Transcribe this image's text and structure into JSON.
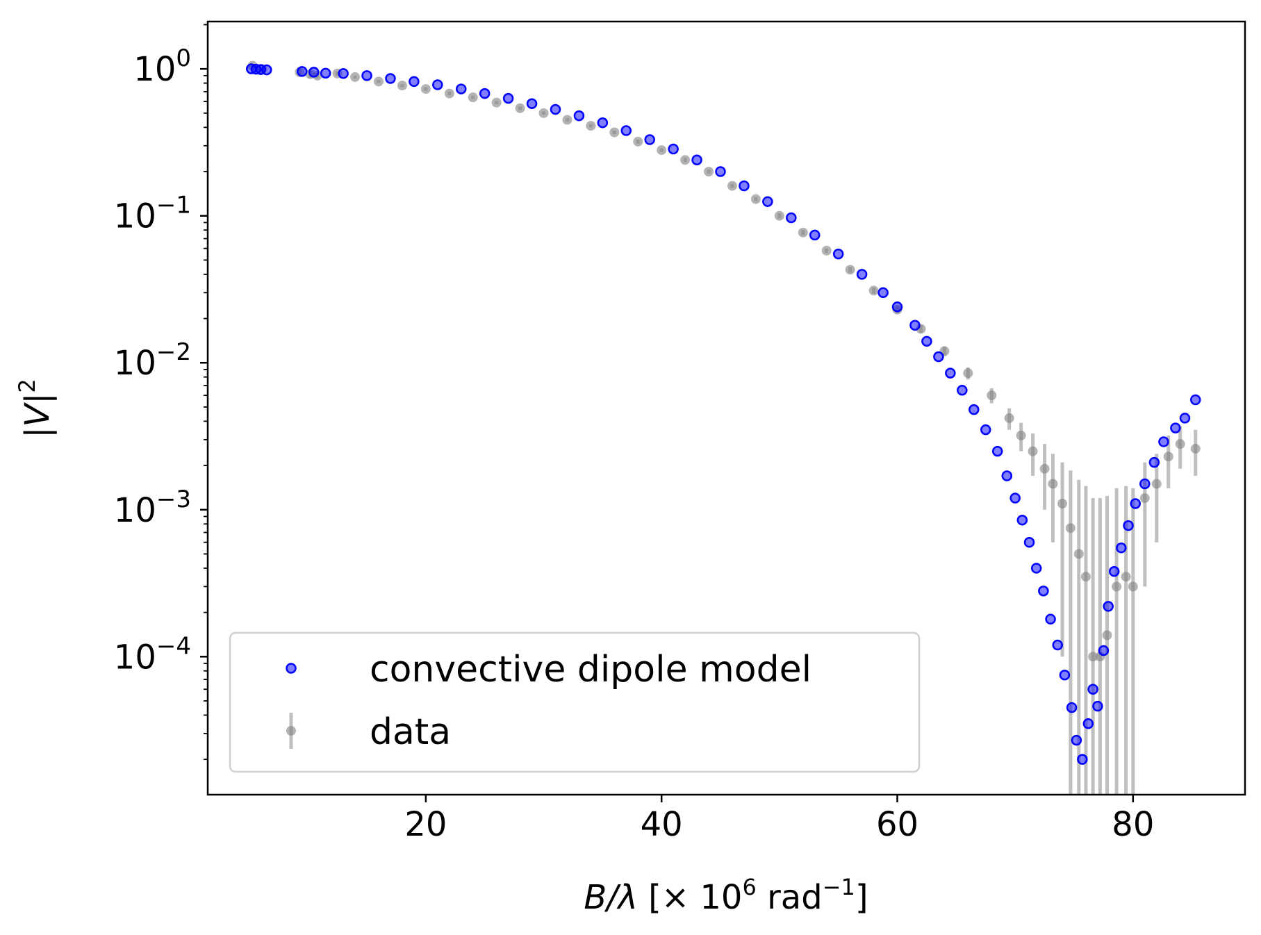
{
  "chart_data": {
    "type": "scatter",
    "title": "",
    "xlabel": {
      "text": "B/λ [× 10⁶ rad⁻¹]",
      "var": "B/λ",
      "open": "[× 10",
      "exp": "6",
      "unit": " rad",
      "unit_exp": "−1",
      "close": "]"
    },
    "ylabel": {
      "text": "|V|²",
      "bar_open": "|",
      "var": "V",
      "bar_close": "|",
      "exp": "2"
    },
    "xlim": [
      1.5,
      89.5
    ],
    "ylim": [
      1.15e-05,
      2.1
    ],
    "yscale": "log",
    "xticks": [
      {
        "value": 20,
        "label": "20"
      },
      {
        "value": 40,
        "label": "40"
      },
      {
        "value": 60,
        "label": "60"
      },
      {
        "value": 80,
        "label": "80"
      }
    ],
    "yticks": [
      {
        "value": 1,
        "base": "10",
        "exp": "0"
      },
      {
        "value": 0.1,
        "base": "10",
        "exp": "−1"
      },
      {
        "value": 0.01,
        "base": "10",
        "exp": "−2"
      },
      {
        "value": 0.001,
        "base": "10",
        "exp": "−3"
      },
      {
        "value": 0.0001,
        "base": "10",
        "exp": "−4"
      }
    ],
    "legend": {
      "position": "lower-left",
      "entries": [
        "convective dipole model",
        "data"
      ]
    },
    "colors": {
      "model": "#0000ff",
      "data": "#808080"
    },
    "series": [
      {
        "name": "convective dipole model",
        "style": "blue circles",
        "x": [
          5.2,
          5.6,
          6.0,
          6.5,
          9.5,
          10.5,
          11.5,
          13,
          15,
          17,
          19,
          21,
          23,
          25,
          27,
          29,
          31,
          33,
          35,
          37,
          39,
          41,
          43,
          45,
          47,
          49,
          51,
          53,
          55,
          57,
          58.8,
          60,
          61.5,
          62.5,
          63.5,
          64.5,
          65.5,
          66.5,
          67.5,
          68.5,
          69.3,
          70.0,
          70.6,
          71.2,
          71.8,
          72.4,
          73.0,
          73.6,
          74.2,
          74.8,
          75.2,
          75.7,
          76.2,
          76.6,
          77.0,
          77.5,
          77.9,
          78.4,
          79.0,
          79.6,
          80.2,
          81.0,
          81.8,
          82.6,
          83.6,
          84.4,
          85.3
        ],
        "y": [
          1.0,
          0.995,
          0.99,
          0.985,
          0.96,
          0.95,
          0.935,
          0.93,
          0.9,
          0.86,
          0.82,
          0.78,
          0.73,
          0.68,
          0.63,
          0.58,
          0.53,
          0.48,
          0.43,
          0.38,
          0.33,
          0.285,
          0.24,
          0.2,
          0.16,
          0.125,
          0.097,
          0.074,
          0.055,
          0.04,
          0.03,
          0.024,
          0.018,
          0.014,
          0.011,
          0.0085,
          0.0065,
          0.0048,
          0.0035,
          0.0025,
          0.0017,
          0.0012,
          0.00085,
          0.0006,
          0.0004,
          0.00028,
          0.00018,
          0.00012,
          7.5e-05,
          4.5e-05,
          2.7e-05,
          2e-05,
          3.5e-05,
          6e-05,
          4.6e-05,
          0.00011,
          0.00022,
          0.00038,
          0.00055,
          0.00078,
          0.0011,
          0.0015,
          0.0021,
          0.0029,
          0.0036,
          0.0042,
          0.0056
        ]
      },
      {
        "name": "data",
        "style": "gray circles with error bars",
        "x": [
          5.3,
          6.1,
          9.3,
          10.2,
          10.8,
          12.5,
          14,
          16,
          18,
          20,
          22,
          24,
          26,
          28,
          30,
          32,
          34,
          36,
          38,
          40,
          42,
          44,
          46,
          48,
          50,
          52,
          54,
          56,
          58,
          60,
          62,
          64,
          66,
          68,
          69.5,
          70.5,
          71.5,
          72.5,
          73.2,
          74.0,
          74.7,
          75.4,
          76.0,
          76.6,
          77.2,
          77.8,
          78.6,
          79.4,
          80.0,
          81.0,
          82.0,
          83.0,
          84.0,
          85.3
        ],
        "y": [
          1.05,
          1.0,
          0.95,
          0.92,
          0.9,
          0.93,
          0.88,
          0.82,
          0.77,
          0.73,
          0.68,
          0.64,
          0.59,
          0.54,
          0.5,
          0.45,
          0.41,
          0.37,
          0.32,
          0.28,
          0.24,
          0.2,
          0.16,
          0.13,
          0.1,
          0.077,
          0.058,
          0.043,
          0.031,
          0.023,
          0.017,
          0.012,
          0.0085,
          0.006,
          0.0042,
          0.0032,
          0.0025,
          0.0019,
          0.0015,
          0.0011,
          0.00075,
          0.0005,
          0.00035,
          0.0001,
          0.0001,
          0.00014,
          0.0003,
          0.00035,
          0.0003,
          0.0012,
          0.0015,
          0.0023,
          0.0028,
          0.0026
        ],
        "err": [
          0.03,
          0.03,
          0.05,
          0.05,
          0.04,
          0.03,
          0.02,
          0.02,
          0.02,
          0.02,
          0.02,
          0.015,
          0.015,
          0.015,
          0.012,
          0.012,
          0.01,
          0.01,
          0.01,
          0.008,
          0.008,
          0.006,
          0.005,
          0.004,
          0.004,
          0.003,
          0.002,
          0.002,
          0.0015,
          0.0012,
          0.001,
          0.0009,
          0.0008,
          0.0007,
          0.0007,
          0.0007,
          0.0008,
          0.0009,
          0.0009,
          0.001,
          0.0011,
          0.0011,
          0.0011,
          0.0011,
          0.0011,
          0.0011,
          0.0011,
          0.0011,
          0.0011,
          0.0009,
          0.0009,
          0.0009,
          0.0009,
          0.0009
        ]
      }
    ]
  }
}
